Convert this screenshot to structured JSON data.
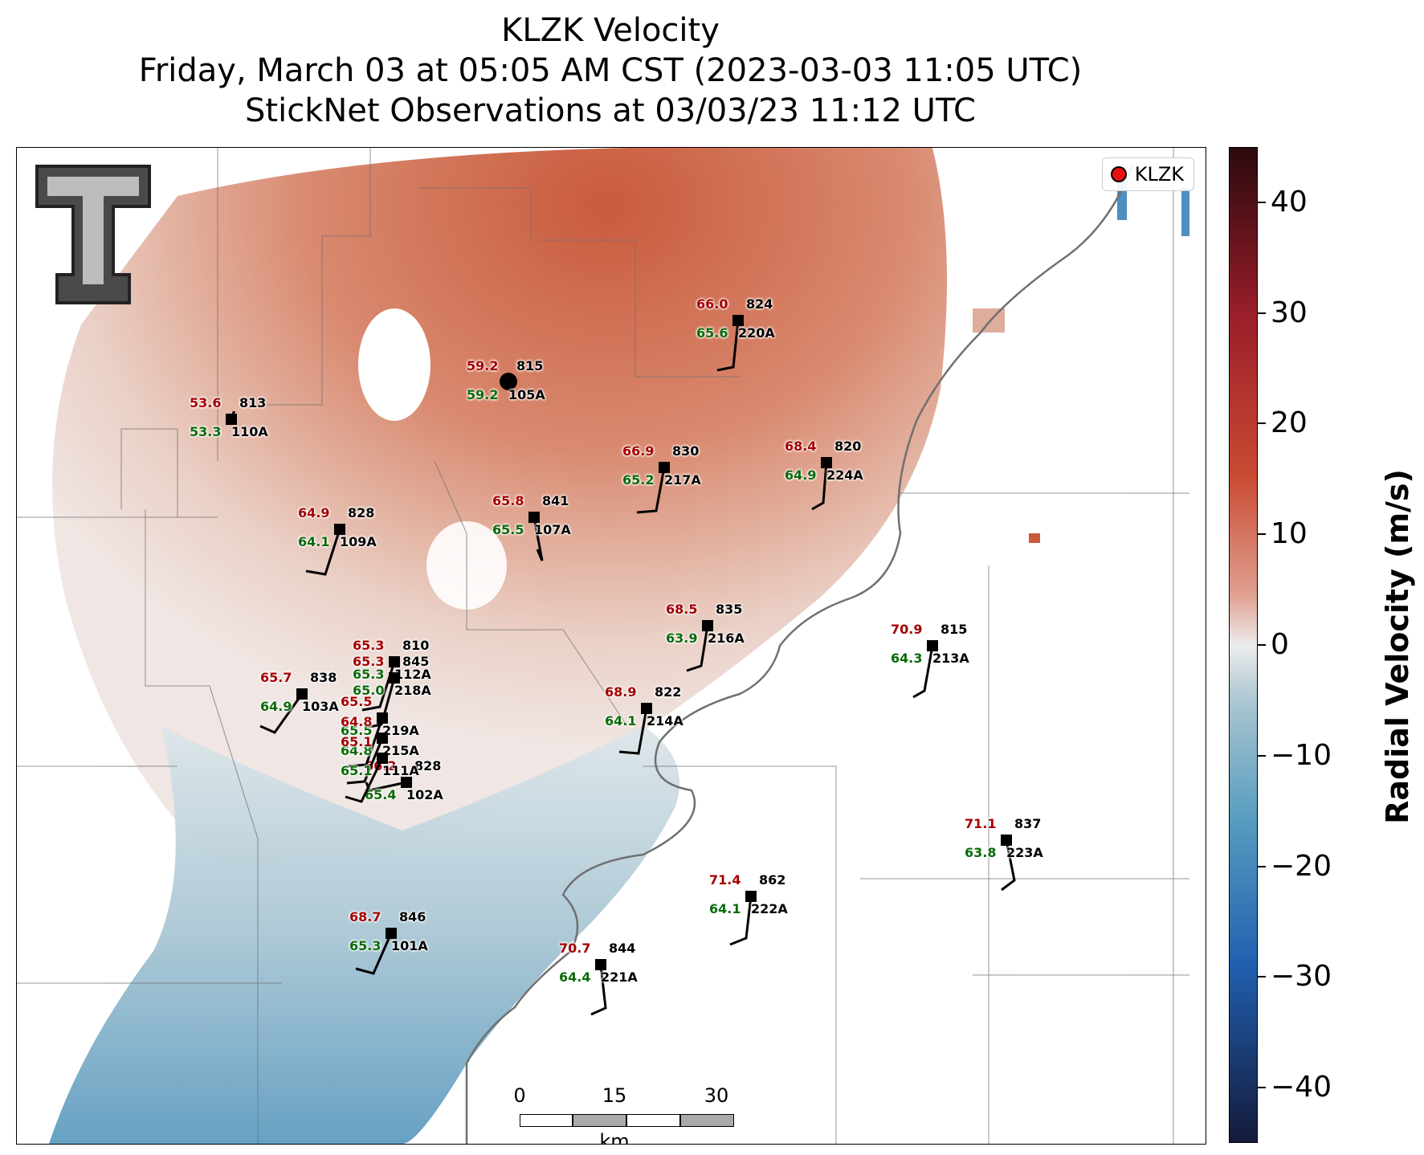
{
  "titles": {
    "line1": "KLZK Velocity",
    "line2": "Friday, March 03 at 05:05 AM CST (2023-03-03 11:05 UTC)",
    "line3": "StickNet Observations at 03/03/23 11:12 UTC"
  },
  "legend": {
    "label": "KLZK",
    "marker_color": "#e81010"
  },
  "logo": {
    "icon": "texas-tech-double-t-logo"
  },
  "scale_bar": {
    "ticks": [
      "0",
      "15",
      "30"
    ],
    "unit": "km"
  },
  "colorbar": {
    "title": "Radial Velocity (m/s)",
    "ticks": [
      "40",
      "30",
      "20",
      "10",
      "0",
      "−10",
      "−20",
      "−30",
      "−40"
    ],
    "tick_values": [
      40,
      30,
      20,
      10,
      0,
      -10,
      -20,
      -30,
      -40
    ],
    "range": [
      -45,
      45
    ],
    "colors": {
      "max": "#2b0a0e",
      "positive": "#c94a32",
      "zero": "#ececec",
      "negative": "#2060b0",
      "min": "#141a3a"
    }
  },
  "stations": [
    {
      "temp": "53.6",
      "pres": "813",
      "dew": "53.3",
      "id": "110A"
    },
    {
      "temp": "59.2",
      "pres": "815",
      "dew": "59.2",
      "id": "105A"
    },
    {
      "temp": "66.0",
      "pres": "824",
      "dew": "65.6",
      "id": "220A"
    },
    {
      "temp": "66.9",
      "pres": "830",
      "dew": "65.2",
      "id": "217A"
    },
    {
      "temp": "68.4",
      "pres": "820",
      "dew": "64.9",
      "id": "224A"
    },
    {
      "temp": "64.9",
      "pres": "828",
      "dew": "64.1",
      "id": "109A"
    },
    {
      "temp": "65.8",
      "pres": "841",
      "dew": "65.5",
      "id": "107A"
    },
    {
      "temp": "68.5",
      "pres": "835",
      "dew": "63.9",
      "id": "216A"
    },
    {
      "temp": "70.9",
      "pres": "815",
      "dew": "64.3",
      "id": "213A"
    },
    {
      "temp": "65.7",
      "pres": "838",
      "dew": "64.9",
      "id": "103A"
    },
    {
      "temp": "65.3",
      "pres": "810",
      "dew": "65.3",
      "id": "112A"
    },
    {
      "temp": "65.3",
      "pres": "845",
      "dew": "65.0",
      "id": "218A"
    },
    {
      "temp": "68.9",
      "pres": "822",
      "dew": "64.1",
      "id": "214A"
    },
    {
      "temp": "66.2",
      "pres": "828",
      "dew": "65.4",
      "id": "102A"
    },
    {
      "temp": "71.1",
      "pres": "837",
      "dew": "63.8",
      "id": "223A"
    },
    {
      "temp": "71.4",
      "pres": "862",
      "dew": "64.1",
      "id": "222A"
    },
    {
      "temp": "68.7",
      "pres": "846",
      "dew": "65.3",
      "id": "101A"
    },
    {
      "temp": "70.7",
      "pres": "844",
      "dew": "64.4",
      "id": "221A"
    },
    {
      "temp": "65.5",
      "pres": "",
      "dew": "65.5",
      "id": "219A"
    },
    {
      "temp": "64.8",
      "pres": "",
      "dew": "64.8",
      "id": "215A"
    },
    {
      "temp": "65.1",
      "pres": "",
      "dew": "65.1",
      "id": "111A"
    }
  ]
}
